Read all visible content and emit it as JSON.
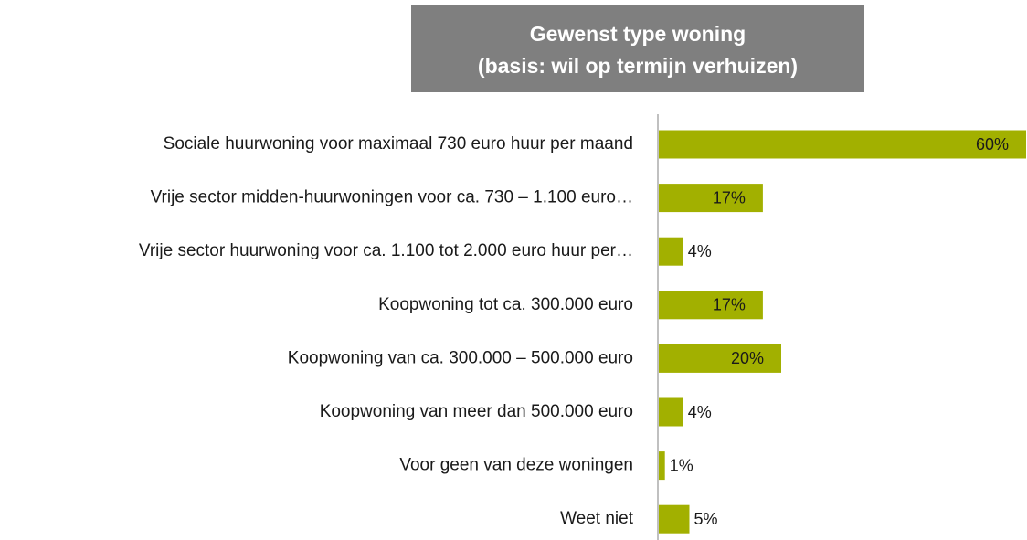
{
  "chart_data": {
    "type": "bar",
    "orientation": "horizontal",
    "title": "Gewenst type woning",
    "subtitle": "(basis: wil op termijn  verhuizen)",
    "categories": [
      "Sociale huurwoning voor maximaal 730 euro huur per maand",
      "Vrije sector midden-huurwoningen voor ca. 730 – 1.100 euro…",
      "Vrije sector huurwoning voor ca. 1.100 tot 2.000 euro huur per…",
      "Koopwoning tot ca. 300.000 euro",
      "Koopwoning van ca. 300.000 – 500.000 euro",
      "Koopwoning van meer dan 500.000 euro",
      "Voor geen van deze woningen",
      "Weet niet"
    ],
    "values": [
      60,
      17,
      4,
      17,
      20,
      4,
      1,
      5
    ],
    "value_labels": [
      "60%",
      "17%",
      "4%",
      "17%",
      "20%",
      "4%",
      "1%",
      "5%"
    ],
    "color": "#a2b000"
  }
}
